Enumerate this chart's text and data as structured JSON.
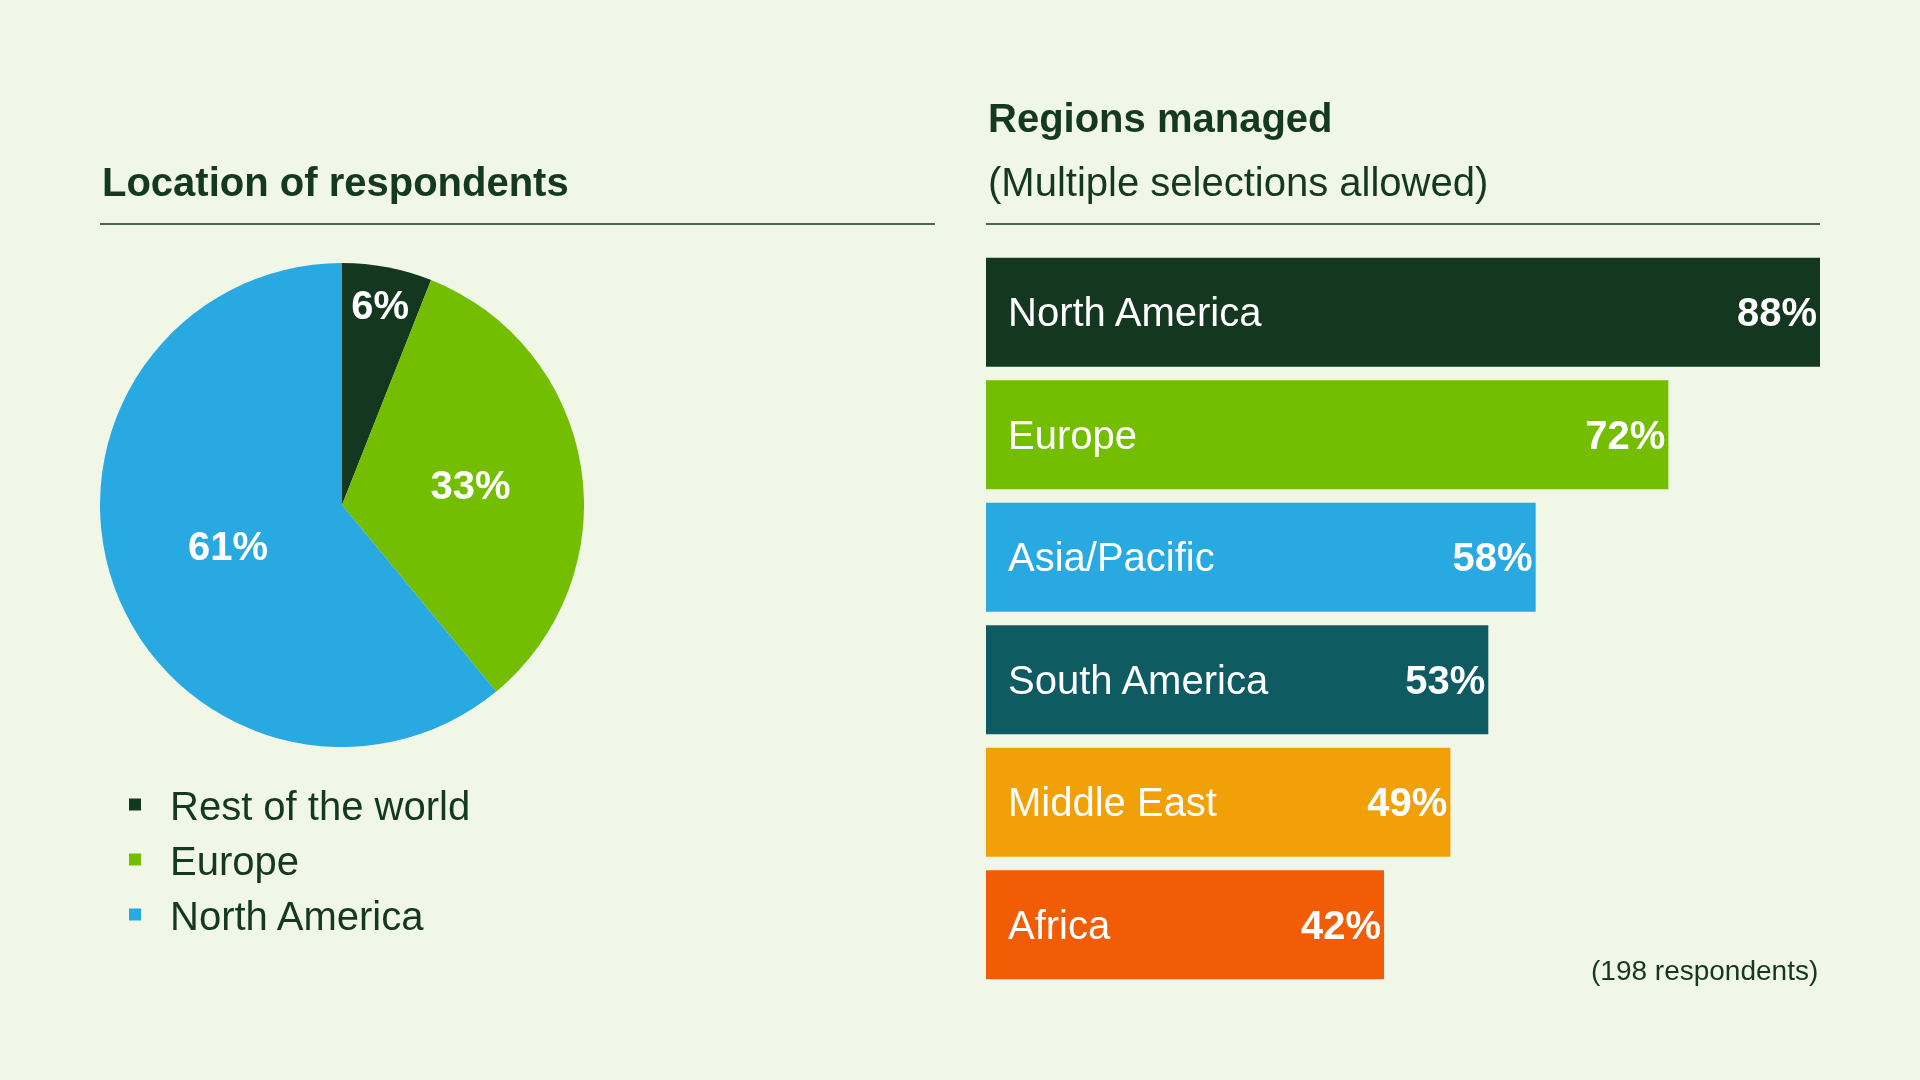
{
  "chart_data": [
    {
      "type": "pie",
      "title": "Location of respondents",
      "categories": [
        "Rest of the world",
        "Europe",
        "North America"
      ],
      "values": [
        6,
        33,
        61
      ],
      "colors": [
        "#13371f",
        "#73be00",
        "#29a9e1"
      ],
      "value_labels": [
        "6%",
        "33%",
        "61%"
      ],
      "legend": "bottom left"
    },
    {
      "type": "bar",
      "orientation": "horizontal",
      "title": "Regions managed",
      "subtitle": "(Multiple selections allowed)",
      "categories": [
        "North America",
        "Europe",
        "Asia/Pacific",
        "South America",
        "Middle East",
        "Africa"
      ],
      "values": [
        88,
        72,
        58,
        53,
        49,
        42
      ],
      "colors": [
        "#13371f",
        "#73be00",
        "#29a9e1",
        "#0e5b62",
        "#f2a007",
        "#f25c05"
      ],
      "value_labels": [
        "88%",
        "72%",
        "58%",
        "53%",
        "49%",
        "42%"
      ],
      "annotations": [
        "(198 respondents)"
      ]
    }
  ]
}
